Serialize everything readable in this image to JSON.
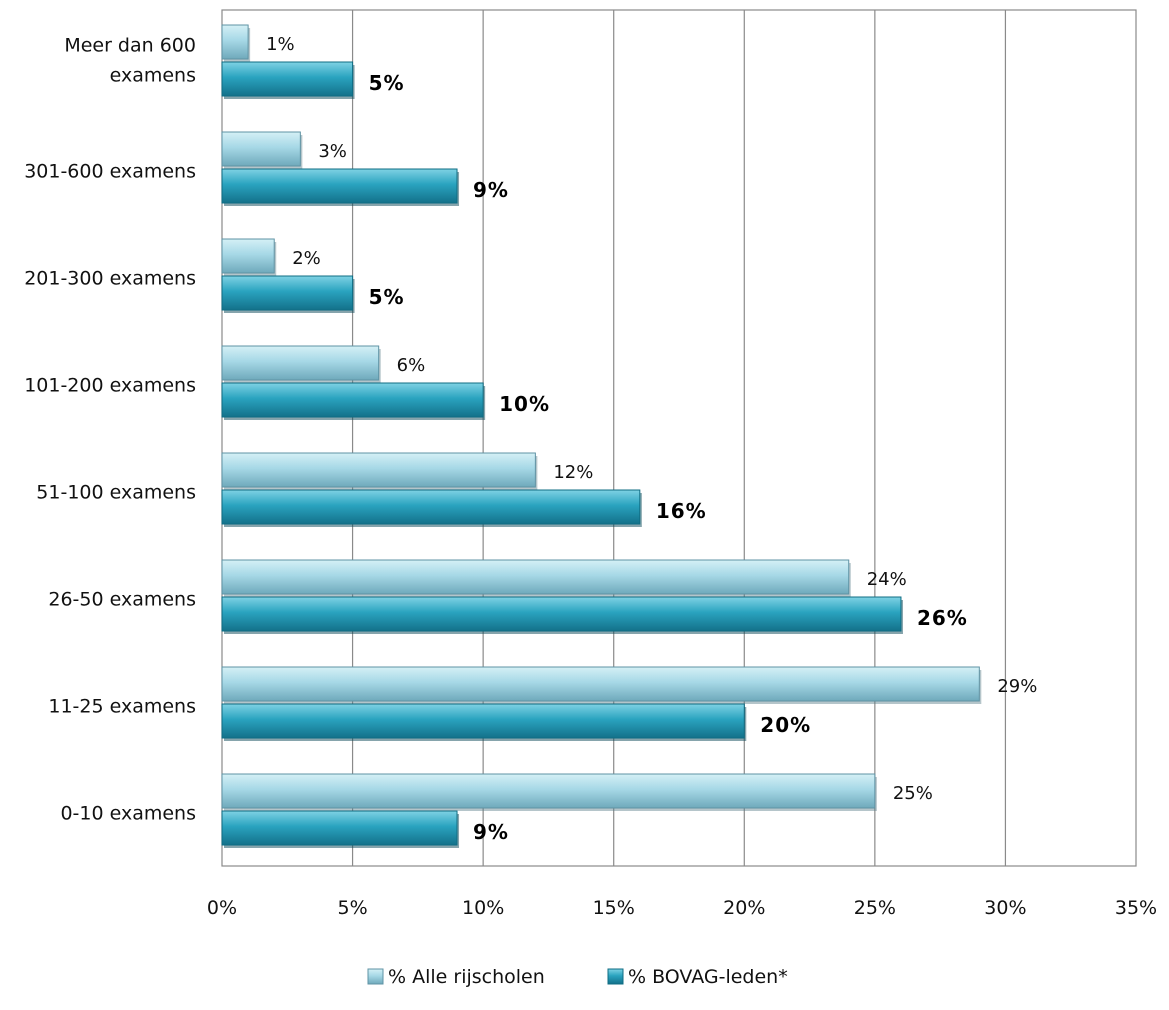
{
  "chart_data": {
    "type": "bar",
    "orientation": "horizontal",
    "categories": [
      [
        "Meer dan 600",
        "examens"
      ],
      [
        "301-600 examens"
      ],
      [
        "201-300 examens"
      ],
      [
        "101-200 examens"
      ],
      [
        "51-100 examens"
      ],
      [
        "26-50 examens"
      ],
      [
        "11-25 examens"
      ],
      [
        "0-10 examens"
      ]
    ],
    "series": [
      {
        "name": "% Alle rijscholen",
        "values": [
          1,
          3,
          2,
          6,
          12,
          24,
          29,
          25
        ],
        "labels": [
          "1%",
          "3%",
          "2%",
          "6%",
          "12%",
          "24%",
          "29%",
          "25%"
        ],
        "color": "#8cc8d8"
      },
      {
        "name": "% BOVAG-leden*",
        "values": [
          5,
          9,
          5,
          10,
          16,
          26,
          20,
          9
        ],
        "labels": [
          "5%",
          "9%",
          "5%",
          "10%",
          "16%",
          "26%",
          "20%",
          "9%"
        ],
        "color": "#2aa3bf"
      }
    ],
    "xlim": [
      0,
      35
    ],
    "xticks": [
      "0%",
      "5%",
      "10%",
      "15%",
      "20%",
      "25%",
      "30%",
      "35%"
    ],
    "grid": true,
    "legend_position": "bottom"
  }
}
